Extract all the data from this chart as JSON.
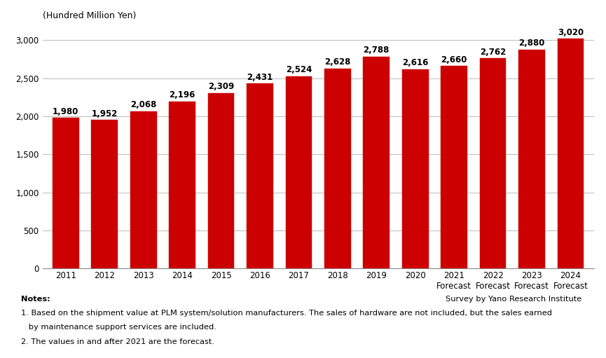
{
  "years": [
    "2011",
    "2012",
    "2013",
    "2014",
    "2015",
    "2016",
    "2017",
    "2018",
    "2019",
    "2020",
    "2021",
    "2022",
    "2023",
    "2024"
  ],
  "values": [
    1980,
    1952,
    2068,
    2196,
    2309,
    2431,
    2524,
    2628,
    2788,
    2616,
    2660,
    2762,
    2880,
    3020
  ],
  "bar_color": "#cc0000",
  "x_tick_labels_normal": [
    "2011",
    "2012",
    "2013",
    "2014",
    "2015",
    "2016",
    "2017",
    "2018",
    "2019",
    "2020"
  ],
  "x_tick_labels_forecast": [
    "2021\nForecast",
    "2022\nForecast",
    "2023\nForecast",
    "2024\nForecast"
  ],
  "ylabel": "(Hundred Million Yen)",
  "ylim": [
    0,
    3200
  ],
  "yticks": [
    0,
    500,
    1000,
    1500,
    2000,
    2500,
    3000
  ],
  "ytick_labels": [
    "0",
    "500",
    "1,000",
    "1,500",
    "2,000",
    "2,500",
    "3,000"
  ],
  "grid_color": "#bbbbbb",
  "background_color": "#ffffff",
  "bar_width": 0.68,
  "value_label_fontsize": 8.5,
  "tick_fontsize": 8.5,
  "note_line1": "Notes:",
  "note_line2": "1. Based on the shipment value at PLM system/solution manufacturers. The sales of hardware are not included, but the sales earned",
  "note_line3": "   by maintenance support services are included.",
  "note_line4": "2. The values in and after 2021 are the forecast.",
  "survey_note": "Survey by Yano Research Institute"
}
